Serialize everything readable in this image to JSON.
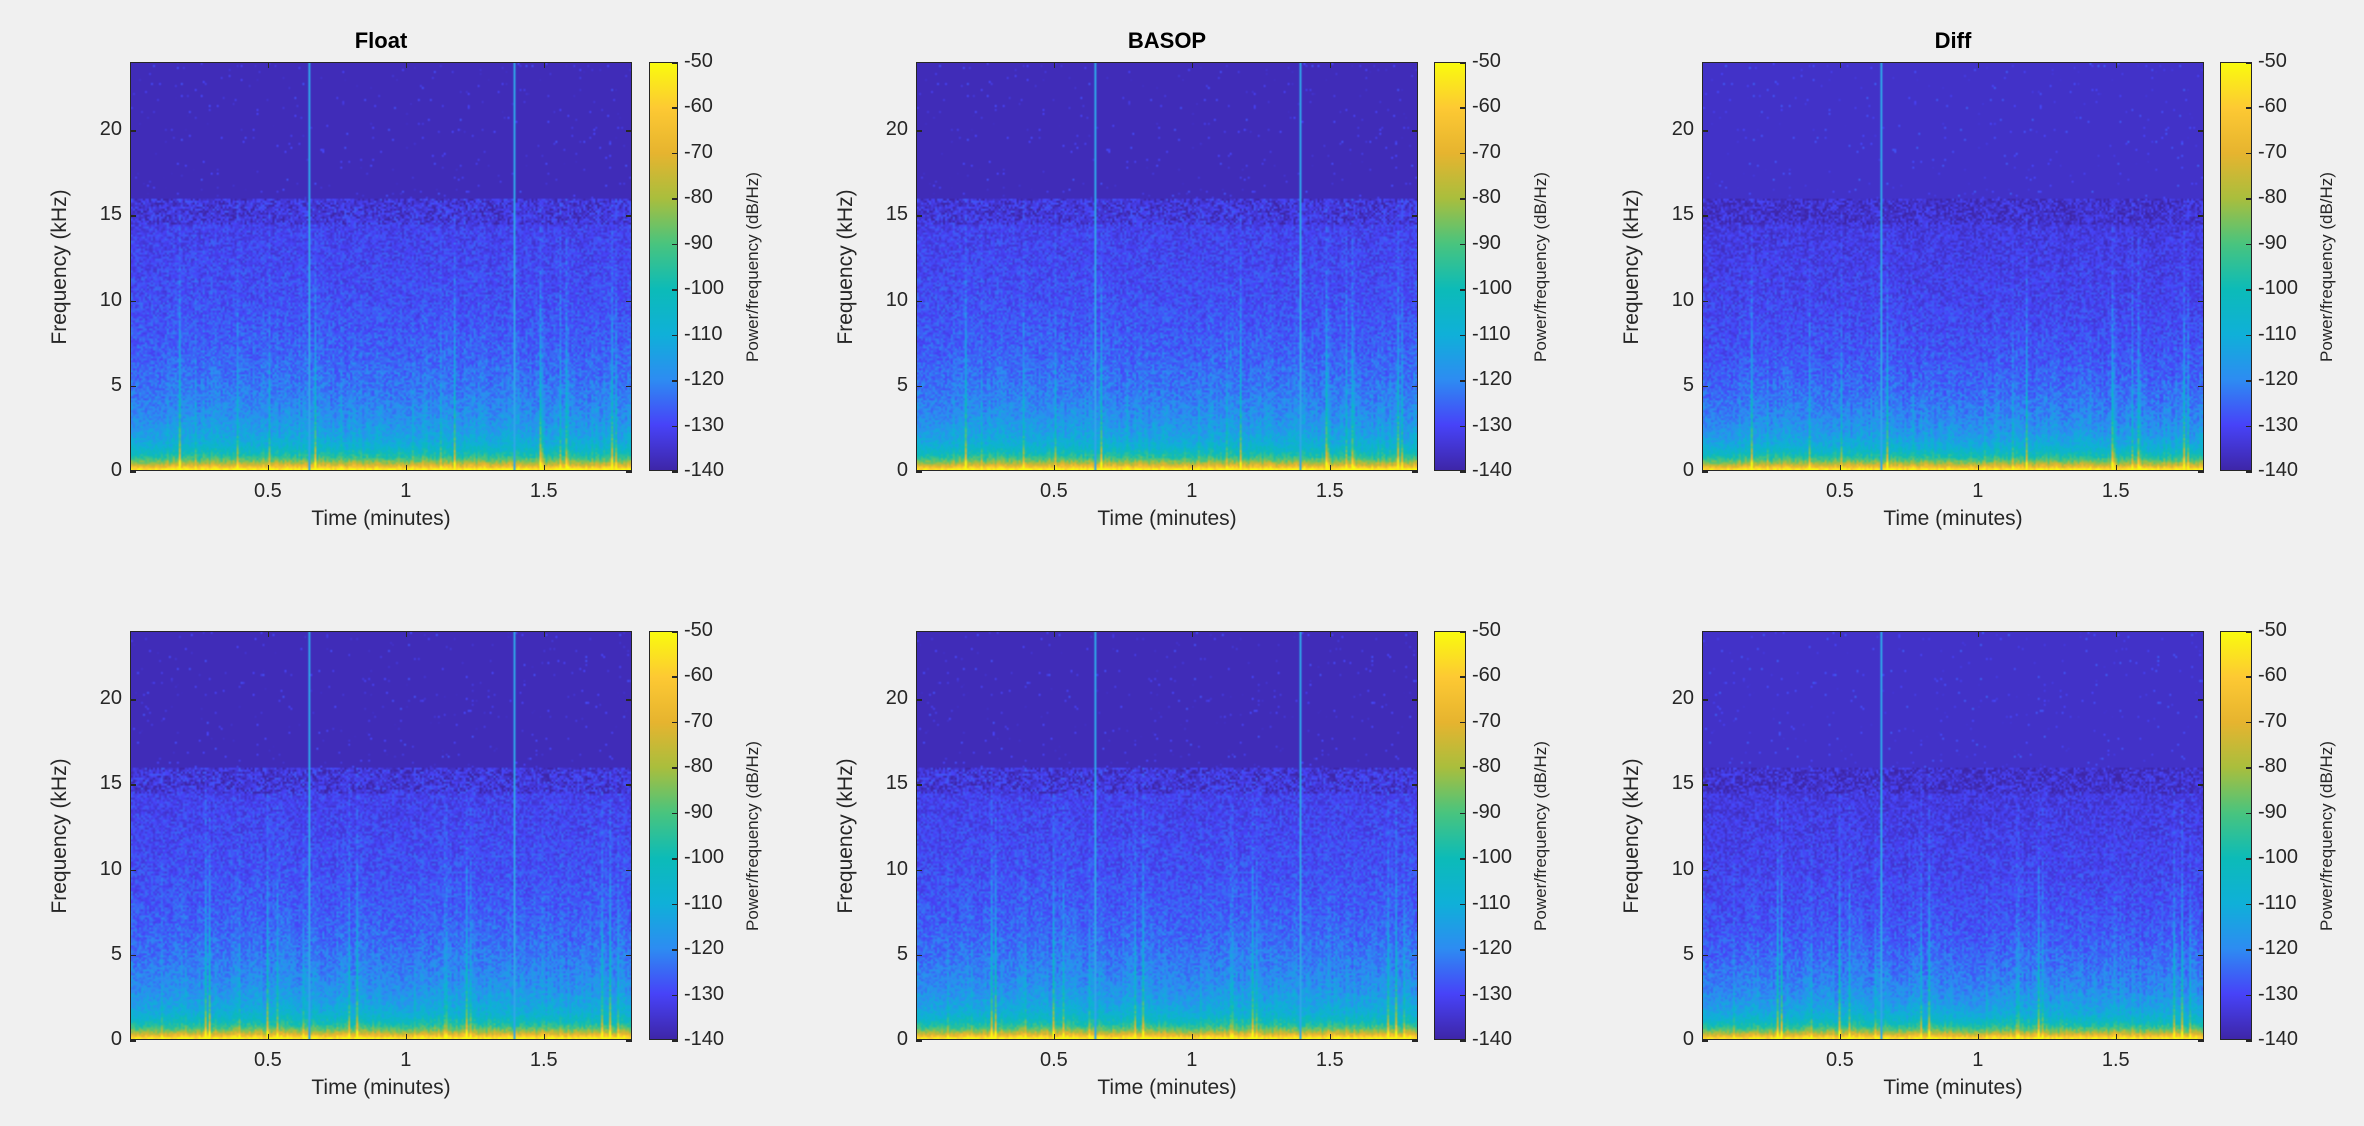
{
  "figure": {
    "background": "#f0f0f0",
    "colormap": "parula",
    "colormap_stops": [
      "#3e26a8",
      "#4743f8",
      "#2d8cf2",
      "#0fb0d8",
      "#0cbbb8",
      "#49c47e",
      "#a9be3d",
      "#e6b42f",
      "#fdc933",
      "#f9fb0e"
    ]
  },
  "chart_data": [
    {
      "type": "heatmap",
      "row": 1,
      "col": 1,
      "title": "Float",
      "xlabel": "Time (minutes)",
      "ylabel": "Frequency (kHz)",
      "xlim": [
        0,
        1.82
      ],
      "ylim": [
        0,
        24
      ],
      "xticks": [
        0.5,
        1,
        1.5
      ],
      "xtick_labels": [
        "0.5",
        "1",
        "1.5"
      ],
      "yticks": [
        0,
        5,
        10,
        15,
        20
      ],
      "ytick_labels": [
        "0",
        "5",
        "10",
        "15",
        "20"
      ],
      "colorbar": {
        "label": "Power/frequency (dB/Hz)",
        "clim": [
          -140,
          -50
        ],
        "ticks": [
          -50,
          -60,
          -70,
          -80,
          -90,
          -100,
          -110,
          -120,
          -130,
          -140
        ],
        "tick_labels": [
          "-50",
          "-60",
          "-70",
          "-80",
          "-90",
          "-100",
          "-110",
          "-120",
          "-130",
          "-140"
        ]
      },
      "content": {
        "bandwidth_cutoff_khz": 16,
        "above_cutoff_db": -138,
        "noise_floor_db": -125,
        "low_freq_peak_db": -60,
        "transient_lines_min": [
          0.645,
          1.395
        ],
        "strength": "full"
      }
    },
    {
      "type": "heatmap",
      "row": 1,
      "col": 2,
      "title": "BASOP",
      "xlabel": "Time (minutes)",
      "ylabel": "Frequency (kHz)",
      "xlim": [
        0,
        1.82
      ],
      "ylim": [
        0,
        24
      ],
      "xticks": [
        0.5,
        1,
        1.5
      ],
      "xtick_labels": [
        "0.5",
        "1",
        "1.5"
      ],
      "yticks": [
        0,
        5,
        10,
        15,
        20
      ],
      "ytick_labels": [
        "0",
        "5",
        "10",
        "15",
        "20"
      ],
      "colorbar": {
        "label": "Power/frequency (dB/Hz)",
        "clim": [
          -140,
          -50
        ],
        "ticks": [
          -50,
          -60,
          -70,
          -80,
          -90,
          -100,
          -110,
          -120,
          -130,
          -140
        ],
        "tick_labels": [
          "-50",
          "-60",
          "-70",
          "-80",
          "-90",
          "-100",
          "-110",
          "-120",
          "-130",
          "-140"
        ]
      },
      "content": {
        "bandwidth_cutoff_khz": 16,
        "above_cutoff_db": -138,
        "noise_floor_db": -125,
        "low_freq_peak_db": -60,
        "transient_lines_min": [
          0.645,
          1.395
        ],
        "strength": "full"
      }
    },
    {
      "type": "heatmap",
      "row": 1,
      "col": 3,
      "title": "Diff",
      "xlabel": "Time (minutes)",
      "ylabel": "Frequency (kHz)",
      "xlim": [
        0,
        1.82
      ],
      "ylim": [
        0,
        24
      ],
      "xticks": [
        0.5,
        1,
        1.5
      ],
      "xtick_labels": [
        "0.5",
        "1",
        "1.5"
      ],
      "yticks": [
        0,
        5,
        10,
        15,
        20
      ],
      "ytick_labels": [
        "0",
        "5",
        "10",
        "15",
        "20"
      ],
      "colorbar": {
        "label": "Power/frequency (dB/Hz)",
        "clim": [
          -140,
          -50
        ],
        "ticks": [
          -50,
          -60,
          -70,
          -80,
          -90,
          -100,
          -110,
          -120,
          -130,
          -140
        ],
        "tick_labels": [
          "-50",
          "-60",
          "-70",
          "-80",
          "-90",
          "-100",
          "-110",
          "-120",
          "-130",
          "-140"
        ]
      },
      "content": {
        "bandwidth_cutoff_khz": 16,
        "above_cutoff_db": -136,
        "noise_floor_db": -127,
        "low_freq_peak_db": -90,
        "transient_lines_min": [
          0.645
        ],
        "strength": "diff"
      }
    },
    {
      "type": "heatmap",
      "row": 2,
      "col": 1,
      "title": "",
      "xlabel": "Time (minutes)",
      "ylabel": "Frequency (kHz)",
      "xlim": [
        0,
        1.82
      ],
      "ylim": [
        0,
        24
      ],
      "xticks": [
        0.5,
        1,
        1.5
      ],
      "xtick_labels": [
        "0.5",
        "1",
        "1.5"
      ],
      "yticks": [
        0,
        5,
        10,
        15,
        20
      ],
      "ytick_labels": [
        "0",
        "5",
        "10",
        "15",
        "20"
      ],
      "colorbar": {
        "label": "Power/frequency (dB/Hz)",
        "clim": [
          -140,
          -50
        ],
        "ticks": [
          -50,
          -60,
          -70,
          -80,
          -90,
          -100,
          -110,
          -120,
          -130,
          -140
        ],
        "tick_labels": [
          "-50",
          "-60",
          "-70",
          "-80",
          "-90",
          "-100",
          "-110",
          "-120",
          "-130",
          "-140"
        ]
      },
      "content": {
        "bandwidth_cutoff_khz": 16,
        "above_cutoff_db": -138,
        "noise_floor_db": -125,
        "low_freq_peak_db": -58,
        "transient_lines_min": [
          0.645,
          1.395
        ],
        "strength": "full"
      }
    },
    {
      "type": "heatmap",
      "row": 2,
      "col": 2,
      "title": "",
      "xlabel": "Time (minutes)",
      "ylabel": "Frequency (kHz)",
      "xlim": [
        0,
        1.82
      ],
      "ylim": [
        0,
        24
      ],
      "xticks": [
        0.5,
        1,
        1.5
      ],
      "xtick_labels": [
        "0.5",
        "1",
        "1.5"
      ],
      "yticks": [
        0,
        5,
        10,
        15,
        20
      ],
      "ytick_labels": [
        "0",
        "5",
        "10",
        "15",
        "20"
      ],
      "colorbar": {
        "label": "Power/frequency (dB/Hz)",
        "clim": [
          -140,
          -50
        ],
        "ticks": [
          -50,
          -60,
          -70,
          -80,
          -90,
          -100,
          -110,
          -120,
          -130,
          -140
        ],
        "tick_labels": [
          "-50",
          "-60",
          "-70",
          "-80",
          "-90",
          "-100",
          "-110",
          "-120",
          "-130",
          "-140"
        ]
      },
      "content": {
        "bandwidth_cutoff_khz": 16,
        "above_cutoff_db": -138,
        "noise_floor_db": -125,
        "low_freq_peak_db": -58,
        "transient_lines_min": [
          0.645,
          1.395
        ],
        "strength": "full"
      }
    },
    {
      "type": "heatmap",
      "row": 2,
      "col": 3,
      "title": "",
      "xlabel": "Time (minutes)",
      "ylabel": "Frequency (kHz)",
      "xlim": [
        0,
        1.82
      ],
      "ylim": [
        0,
        24
      ],
      "xticks": [
        0.5,
        1,
        1.5
      ],
      "xtick_labels": [
        "0.5",
        "1",
        "1.5"
      ],
      "yticks": [
        0,
        5,
        10,
        15,
        20
      ],
      "ytick_labels": [
        "0",
        "5",
        "10",
        "15",
        "20"
      ],
      "colorbar": {
        "label": "Power/frequency (dB/Hz)",
        "clim": [
          -140,
          -50
        ],
        "ticks": [
          -50,
          -60,
          -70,
          -80,
          -90,
          -100,
          -110,
          -120,
          -130,
          -140
        ],
        "tick_labels": [
          "-50",
          "-60",
          "-70",
          "-80",
          "-90",
          "-100",
          "-110",
          "-120",
          "-130",
          "-140"
        ]
      },
      "content": {
        "bandwidth_cutoff_khz": 16,
        "above_cutoff_db": -136,
        "noise_floor_db": -127,
        "low_freq_peak_db": -92,
        "transient_lines_min": [
          0.645
        ],
        "strength": "diff"
      }
    }
  ]
}
